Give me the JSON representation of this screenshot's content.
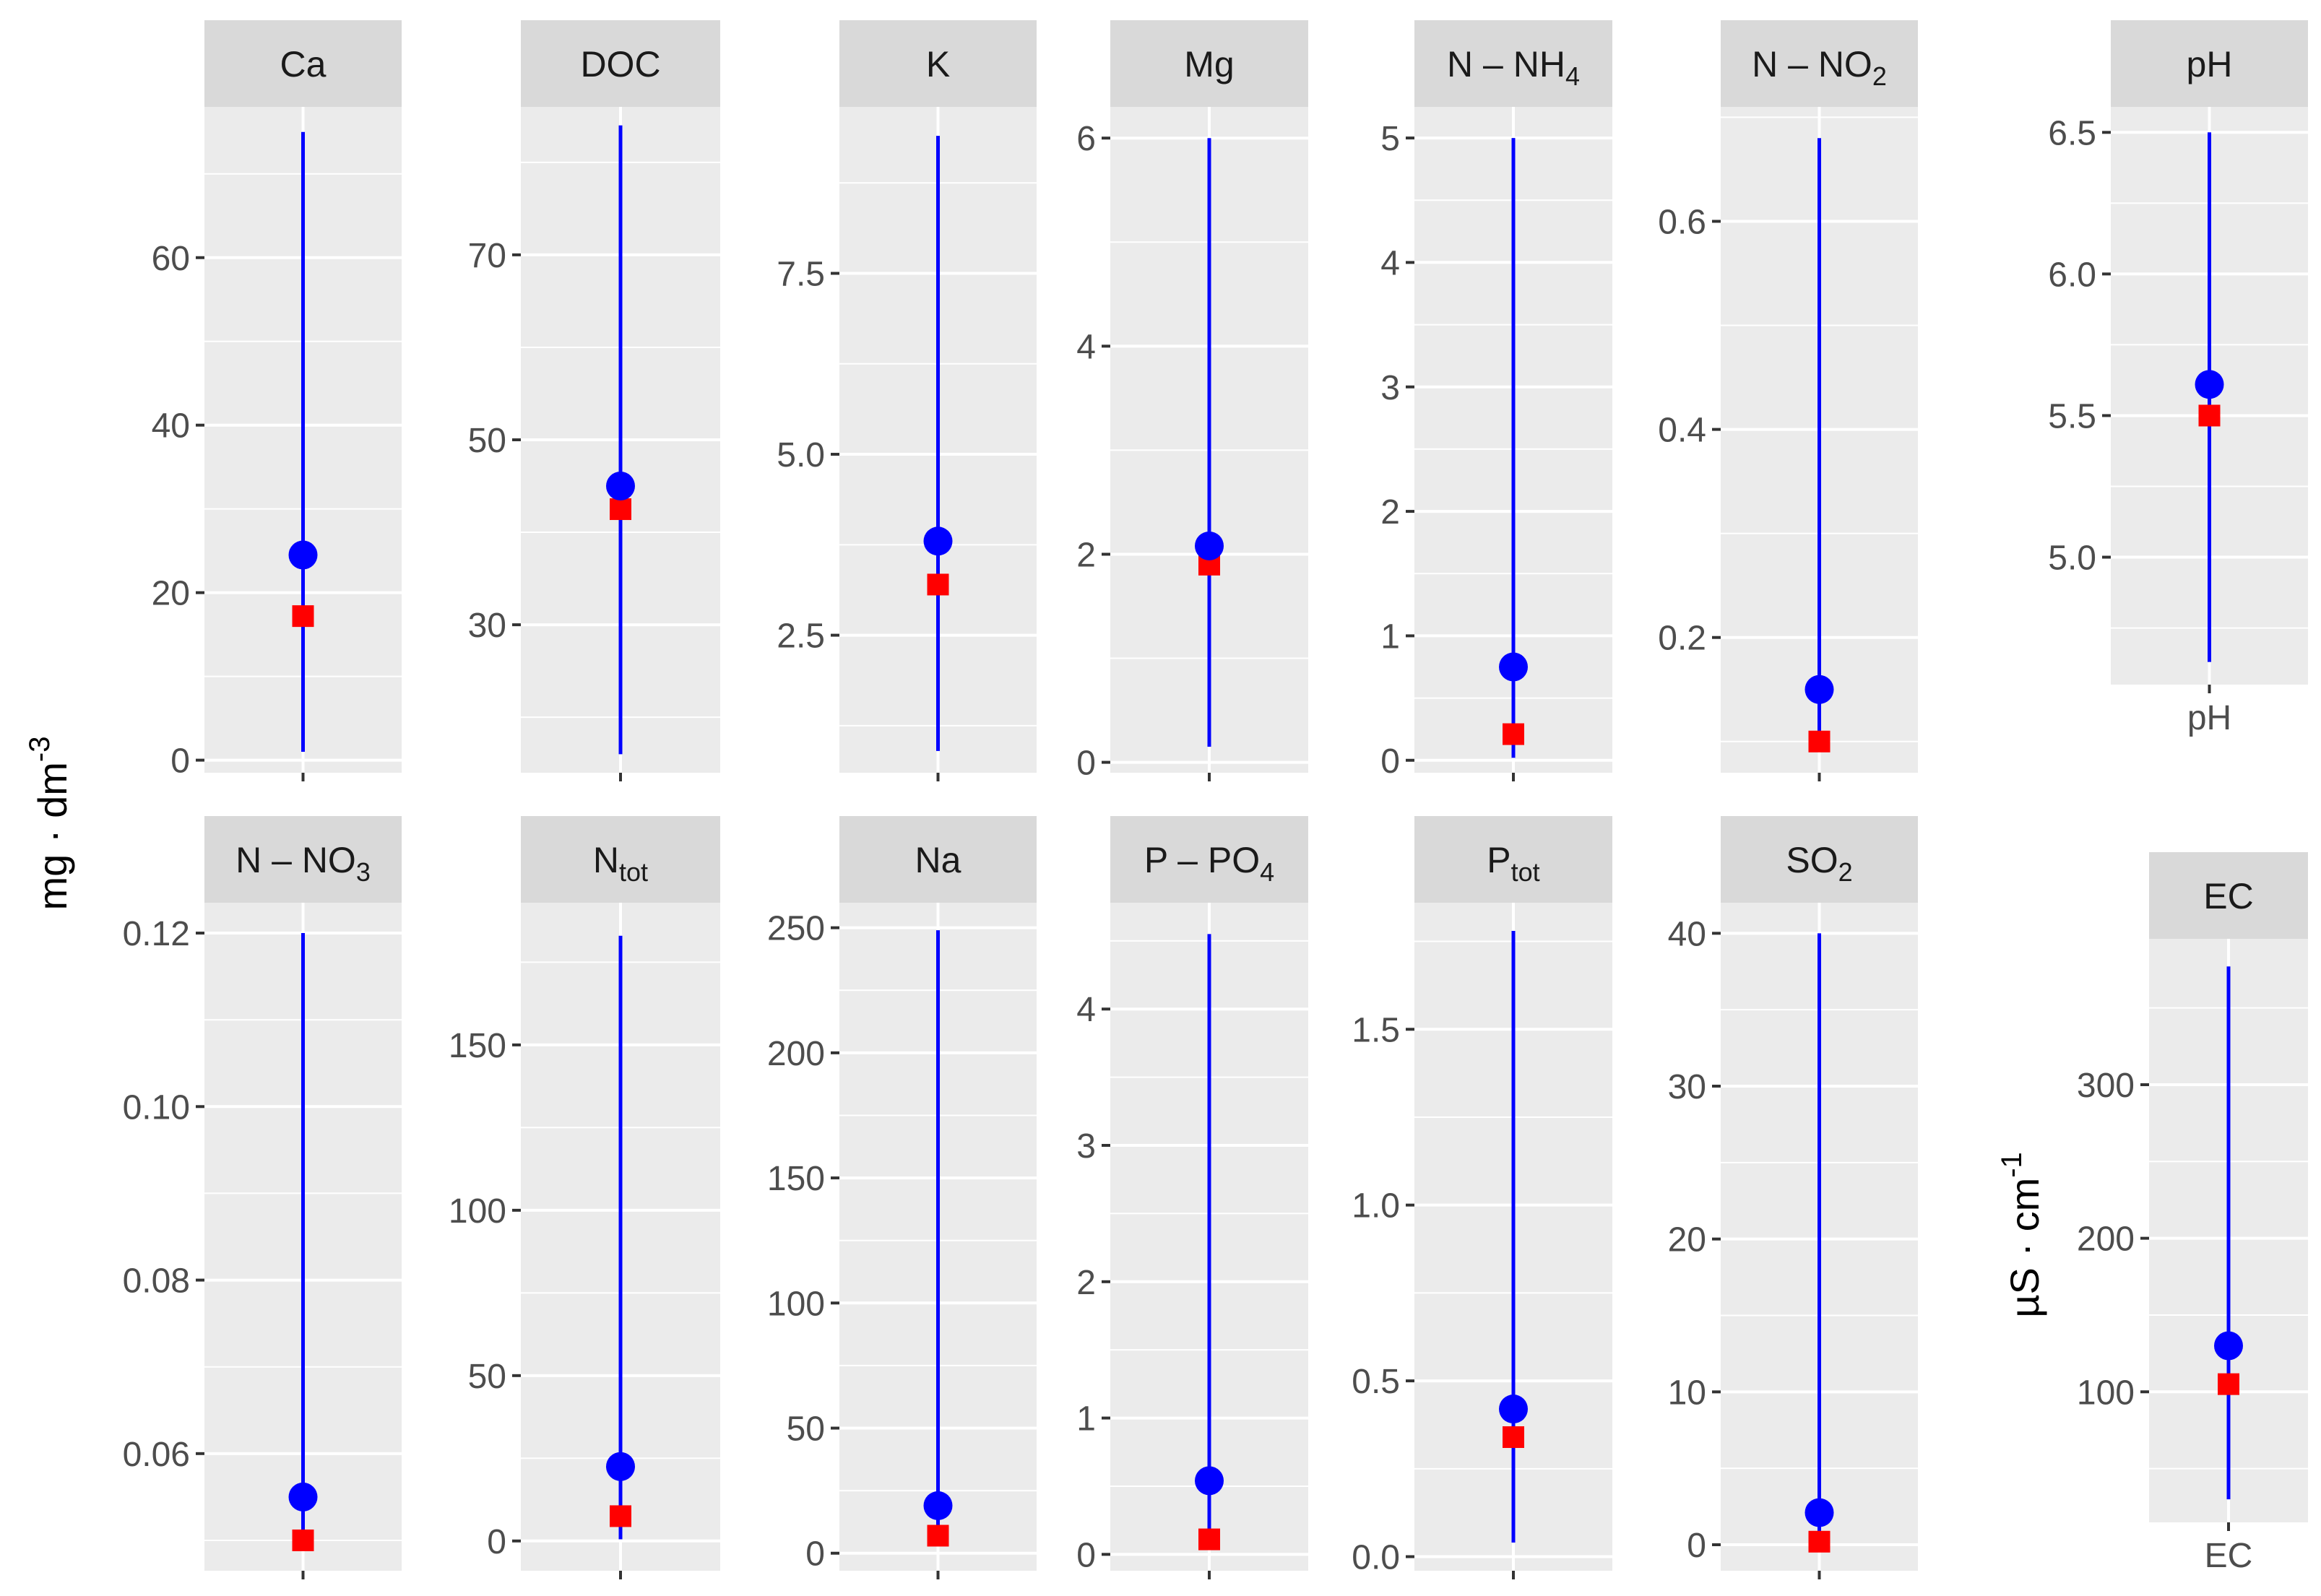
{
  "chart_data": {
    "type": "range-dot-plot",
    "legend": "none",
    "grid": true,
    "ylabel_left": "mg·dm⁻³",
    "ylabel_left_parts": {
      "base": "mg · dm",
      "sup": "-3"
    },
    "ylabel_right": "µS·cm⁻¹",
    "ylabel_right_parts": {
      "base": "µS · cm",
      "sup": "-1"
    },
    "series": [
      {
        "name": "range",
        "color": "#0000ff",
        "mark": "vertical line from min to max"
      },
      {
        "name": "mean",
        "color": "#0000ff",
        "mark": "circle"
      },
      {
        "name": "median",
        "color": "#ff0000",
        "mark": "square"
      }
    ],
    "panels": [
      {
        "label": "Ca",
        "strip_parts": {
          "main": "Ca"
        },
        "min": 1,
        "max": 75,
        "mean": 24.5,
        "median": 17.2,
        "ylim": [
          -1.5,
          78
        ],
        "ticks": [
          0,
          20,
          40,
          60
        ],
        "tick_labels": [
          "0",
          "20",
          "40",
          "60"
        ],
        "x_tick_label": ""
      },
      {
        "label": "DOC",
        "strip_parts": {
          "main": "DOC"
        },
        "min": 16,
        "max": 84,
        "mean": 45,
        "median": 42.5,
        "ylim": [
          14,
          86
        ],
        "ticks": [
          30,
          50,
          70
        ],
        "tick_labels": [
          "30",
          "50",
          "70"
        ],
        "x_tick_label": ""
      },
      {
        "label": "K",
        "strip_parts": {
          "main": "K"
        },
        "min": 0.9,
        "max": 9.4,
        "mean": 3.8,
        "median": 3.2,
        "ylim": [
          0.6,
          9.8
        ],
        "ticks": [
          2.5,
          5.0,
          7.5
        ],
        "tick_labels": [
          "2.5",
          "5.0",
          "7.5"
        ],
        "x_tick_label": ""
      },
      {
        "label": "Mg",
        "strip_parts": {
          "main": "Mg"
        },
        "min": 0.15,
        "max": 6.0,
        "mean": 2.08,
        "median": 1.9,
        "ylim": [
          -0.1,
          6.3
        ],
        "ticks": [
          0,
          2,
          4,
          6
        ],
        "tick_labels": [
          "0",
          "2",
          "4",
          "6"
        ],
        "x_tick_label": ""
      },
      {
        "label": "N – NH4",
        "strip_parts": {
          "main": "N – NH",
          "sub": "4"
        },
        "min": 0.02,
        "max": 5.0,
        "mean": 0.75,
        "median": 0.21,
        "ylim": [
          -0.1,
          5.25
        ],
        "ticks": [
          0,
          1,
          2,
          3,
          4,
          5
        ],
        "tick_labels": [
          "0",
          "1",
          "2",
          "3",
          "4",
          "5"
        ],
        "x_tick_label": ""
      },
      {
        "label": "N – NO2",
        "strip_parts": {
          "main": "N – NO",
          "sub": "2"
        },
        "min": 0.1,
        "max": 0.68,
        "mean": 0.15,
        "median": 0.1,
        "ylim": [
          0.07,
          0.71
        ],
        "ticks": [
          0.2,
          0.4,
          0.6
        ],
        "tick_labels": [
          "0.2",
          "0.4",
          "0.6"
        ],
        "x_tick_label": ""
      },
      {
        "label": "pH",
        "strip_parts": {
          "main": "pH"
        },
        "min": 4.63,
        "max": 6.5,
        "mean": 5.61,
        "median": 5.5,
        "ylim": [
          4.55,
          6.59
        ],
        "ticks": [
          5.0,
          5.5,
          6.0,
          6.5
        ],
        "tick_labels": [
          "5.0",
          "5.5",
          "6.0",
          "6.5"
        ],
        "x_tick_label": "pH"
      },
      {
        "label": "N – NO3",
        "strip_parts": {
          "main": "N – NO",
          "sub": "3"
        },
        "min": 0.05,
        "max": 0.12,
        "mean": 0.055,
        "median": 0.05,
        "ylim": [
          0.0465,
          0.1235
        ],
        "ticks": [
          0.06,
          0.08,
          0.1,
          0.12
        ],
        "tick_labels": [
          "0.06",
          "0.08",
          "0.10",
          "0.12"
        ],
        "x_tick_label": ""
      },
      {
        "label": "Ntot",
        "strip_parts": {
          "main": "N",
          "sub": "tot"
        },
        "min": 0.5,
        "max": 183,
        "mean": 22.5,
        "median": 7.5,
        "ylim": [
          -9,
          193
        ],
        "ticks": [
          0,
          50,
          100,
          150
        ],
        "tick_labels": [
          "0",
          "50",
          "100",
          "150"
        ],
        "x_tick_label": ""
      },
      {
        "label": "Na",
        "strip_parts": {
          "main": "Na"
        },
        "min": 5,
        "max": 249,
        "mean": 19,
        "median": 7,
        "ylim": [
          -7,
          260
        ],
        "ticks": [
          0,
          50,
          100,
          150,
          200,
          250
        ],
        "tick_labels": [
          "0",
          "50",
          "100",
          "150",
          "200",
          "250"
        ],
        "x_tick_label": ""
      },
      {
        "label": "P – PO4",
        "strip_parts": {
          "main": "P – PO",
          "sub": "4"
        },
        "min": 0.1,
        "max": 4.55,
        "mean": 0.54,
        "median": 0.11,
        "ylim": [
          -0.12,
          4.78
        ],
        "ticks": [
          0,
          1,
          2,
          3,
          4
        ],
        "tick_labels": [
          "0",
          "1",
          "2",
          "3",
          "4"
        ],
        "x_tick_label": ""
      },
      {
        "label": "Ptot",
        "strip_parts": {
          "main": "P",
          "sub": "tot"
        },
        "min": 0.04,
        "max": 1.78,
        "mean": 0.42,
        "median": 0.34,
        "ylim": [
          -0.04,
          1.86
        ],
        "ticks": [
          0.0,
          0.5,
          1.0,
          1.5
        ],
        "tick_labels": [
          "0.0",
          "0.5",
          "1.0",
          "1.5"
        ],
        "x_tick_label": ""
      },
      {
        "label": "SO2",
        "strip_parts": {
          "main": "SO",
          "sub": "2"
        },
        "min": 0.1,
        "max": 40,
        "mean": 2.1,
        "median": 0.2,
        "ylim": [
          -1.7,
          42
        ],
        "ticks": [
          0,
          10,
          20,
          30,
          40
        ],
        "tick_labels": [
          "0",
          "10",
          "20",
          "30",
          "40"
        ],
        "x_tick_label": ""
      },
      {
        "label": "EC",
        "strip_parts": {
          "main": "EC"
        },
        "min": 30,
        "max": 377,
        "mean": 130,
        "median": 105,
        "ylim": [
          15,
          395
        ],
        "ticks": [
          100,
          200,
          300
        ],
        "tick_labels": [
          "100",
          "200",
          "300"
        ],
        "x_tick_label": "EC"
      }
    ]
  }
}
